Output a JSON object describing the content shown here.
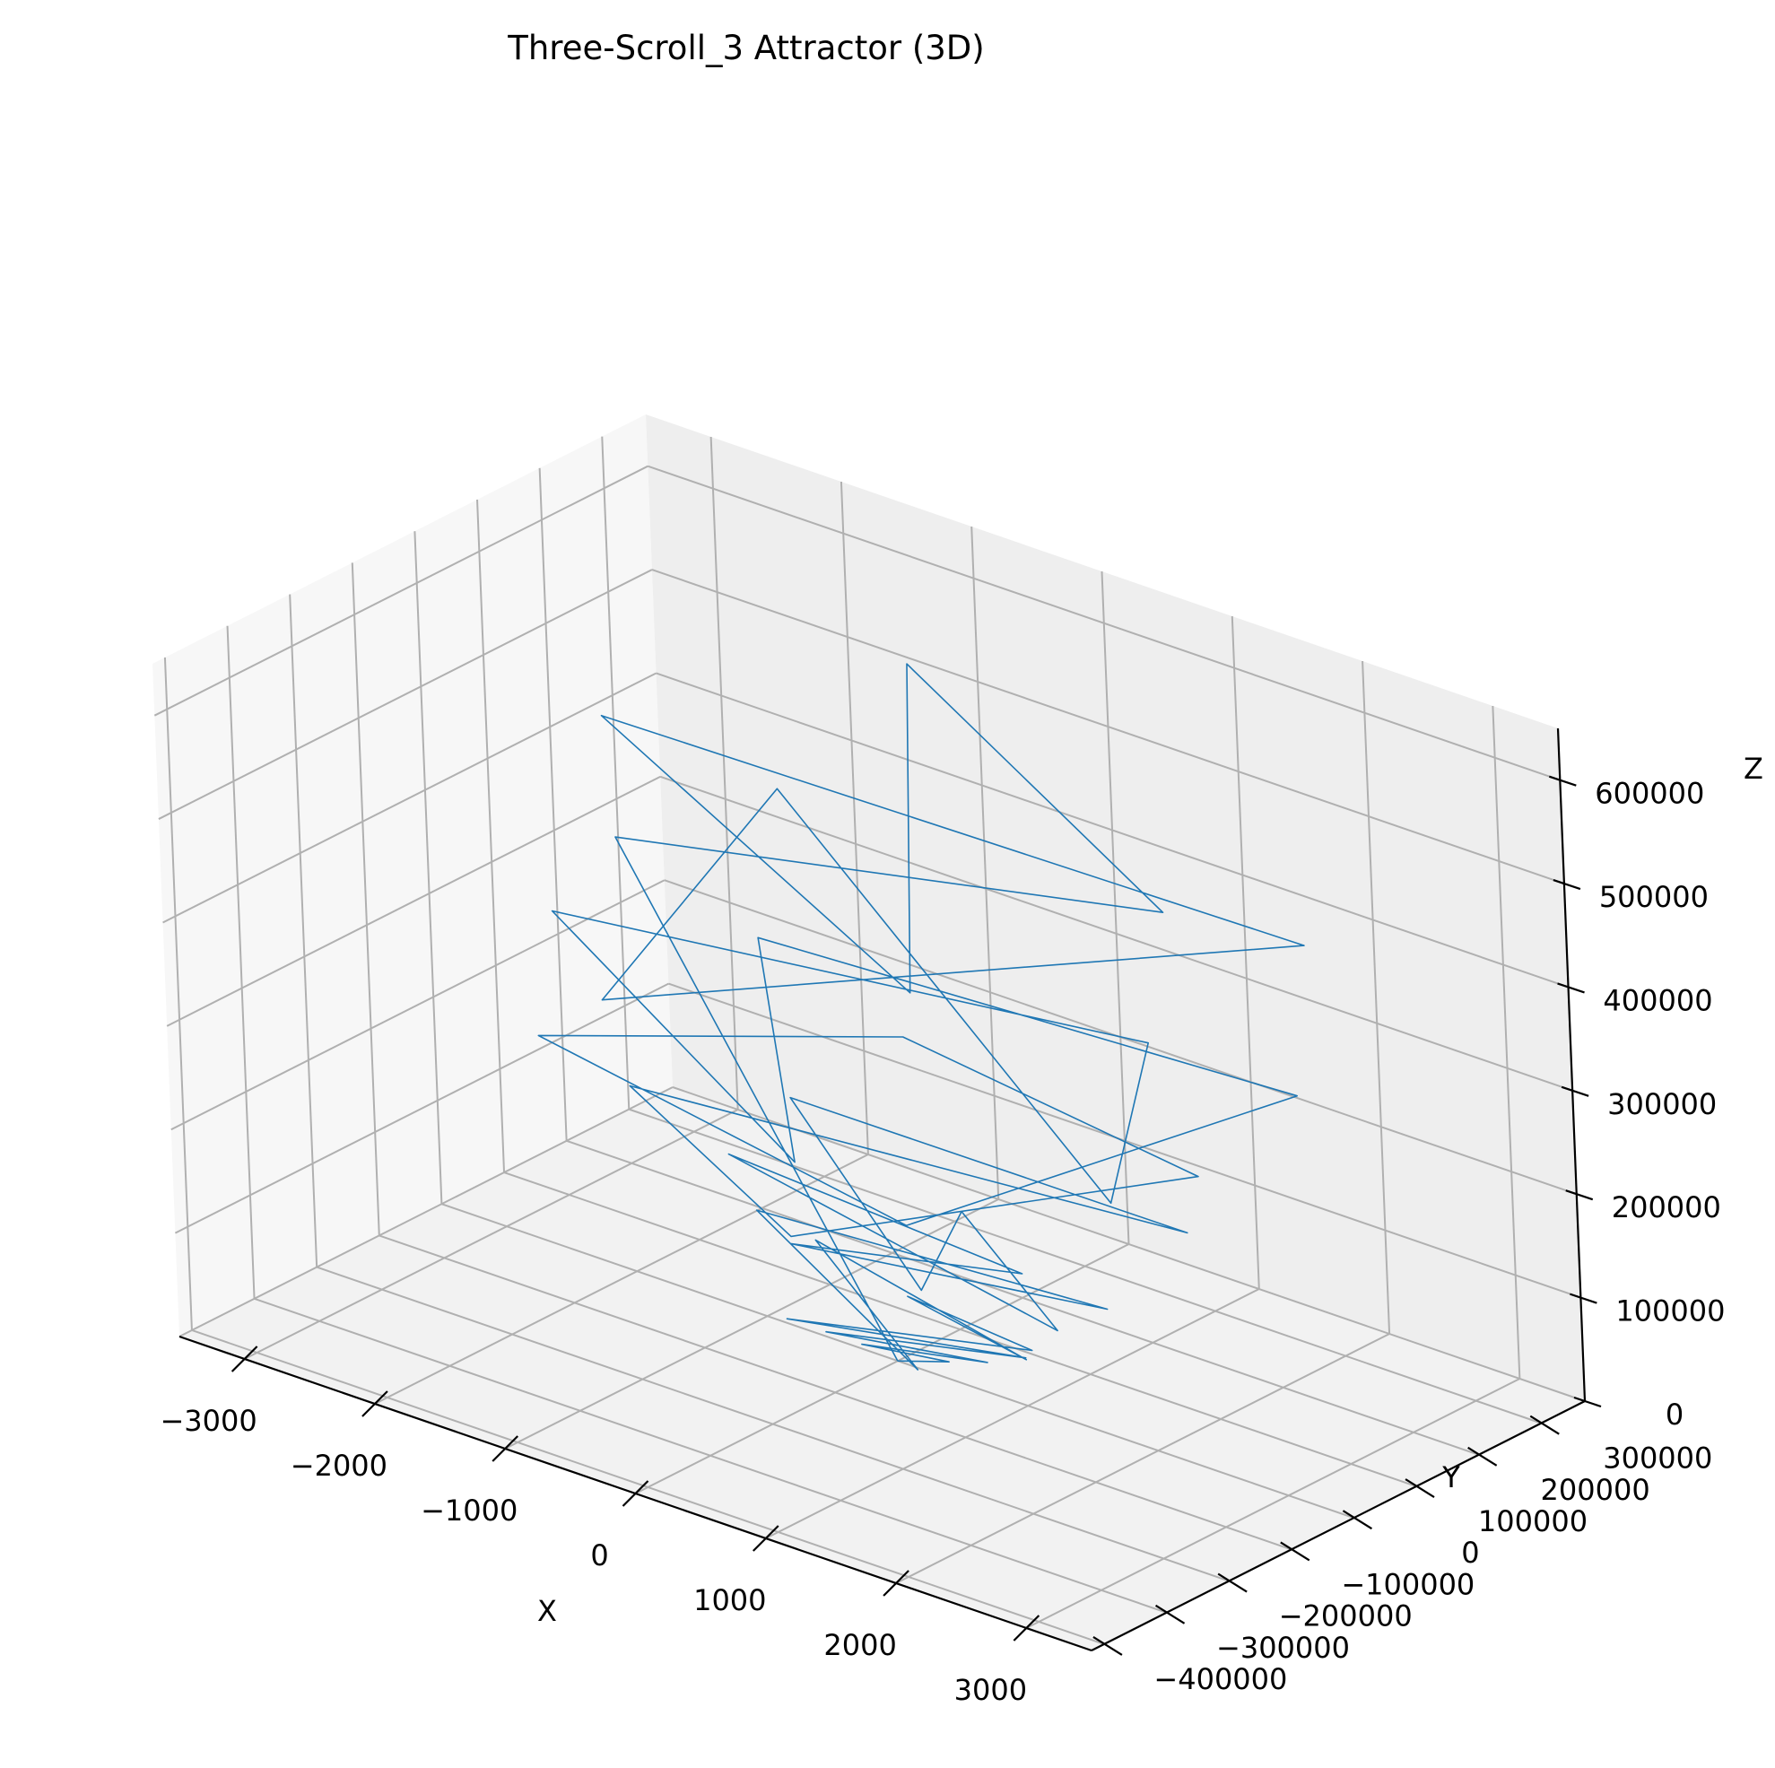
{
  "chart_data": {
    "type": "line",
    "title": "Three-Scroll_3 Attractor (3D)",
    "xlabel": "X",
    "ylabel": "Y",
    "zlabel": "Z",
    "xlim": [
      -3500,
      3500
    ],
    "ylim": [
      -420000,
      370000
    ],
    "zlim": [
      0,
      650000
    ],
    "xticks": [
      -3000,
      -2000,
      -1000,
      0,
      1000,
      2000,
      3000
    ],
    "yticks": [
      -400000,
      -300000,
      -200000,
      -100000,
      0,
      100000,
      200000,
      300000
    ],
    "zticks": [
      0,
      100000,
      200000,
      300000,
      400000,
      500000,
      600000
    ],
    "xtick_labels": [
      "−3000",
      "−2000",
      "−1000",
      "0",
      "1000",
      "2000",
      "3000"
    ],
    "ytick_labels": [
      "−400000",
      "−300000",
      "−200000",
      "−100000",
      "0",
      "100000",
      "200000",
      "300000"
    ],
    "ztick_labels": [
      "0",
      "100000",
      "200000",
      "300000",
      "400000",
      "500000",
      "600000"
    ],
    "grid": true,
    "line_color": "#1f77b4",
    "series": [
      {
        "points": [
          [
            0,
            0,
            0
          ],
          [
            300,
            20000,
            6000
          ],
          [
            -200,
            -15000,
            12000
          ],
          [
            500,
            40000,
            8000
          ],
          [
            -400,
            -30000,
            20000
          ],
          [
            700,
            60000,
            15000
          ],
          [
            -600,
            -50000,
            30000
          ],
          [
            900,
            30000,
            40000
          ],
          [
            -300,
            80000,
            25000
          ],
          [
            1100,
            -20000,
            55000
          ],
          [
            -800,
            40000,
            70000
          ],
          [
            600,
            -90000,
            45000
          ],
          [
            -1100,
            10000,
            95000
          ],
          [
            1300,
            70000,
            85000
          ],
          [
            -500,
            -60000,
            110000
          ],
          [
            400,
            120000,
            65000
          ],
          [
            -1400,
            30000,
            130000
          ],
          [
            1600,
            -70000,
            120000
          ],
          [
            -200,
            150000,
            90000
          ],
          [
            900,
            -140000,
            150000
          ],
          [
            -1200,
            90000,
            175000
          ],
          [
            1500,
            160000,
            140000
          ],
          [
            -1800,
            -40000,
            200000
          ],
          [
            200,
            -200000,
            190000
          ],
          [
            1900,
            100000,
            230000
          ],
          [
            -900,
            210000,
            210000
          ],
          [
            -2100,
            -120000,
            260000
          ],
          [
            1200,
            -220000,
            250000
          ],
          [
            2100,
            220000,
            280000
          ],
          [
            -1600,
            130000,
            300000
          ],
          [
            500,
            -250000,
            290000
          ],
          [
            -2400,
            -30000,
            340000
          ],
          [
            1800,
            50000,
            370000
          ],
          [
            2600,
            -180000,
            320000
          ],
          [
            -2000,
            250000,
            390000
          ],
          [
            -700,
            -300000,
            410000
          ],
          [
            2300,
            200000,
            440000
          ],
          [
            -2700,
            120000,
            470000
          ],
          [
            1500,
            -260000,
            500000
          ],
          [
            -1200,
            300000,
            530000
          ],
          [
            2500,
            -60000,
            560000
          ],
          [
            -300,
            -350000,
            600000
          ],
          [
            0,
            0,
            0
          ]
        ]
      }
    ]
  }
}
